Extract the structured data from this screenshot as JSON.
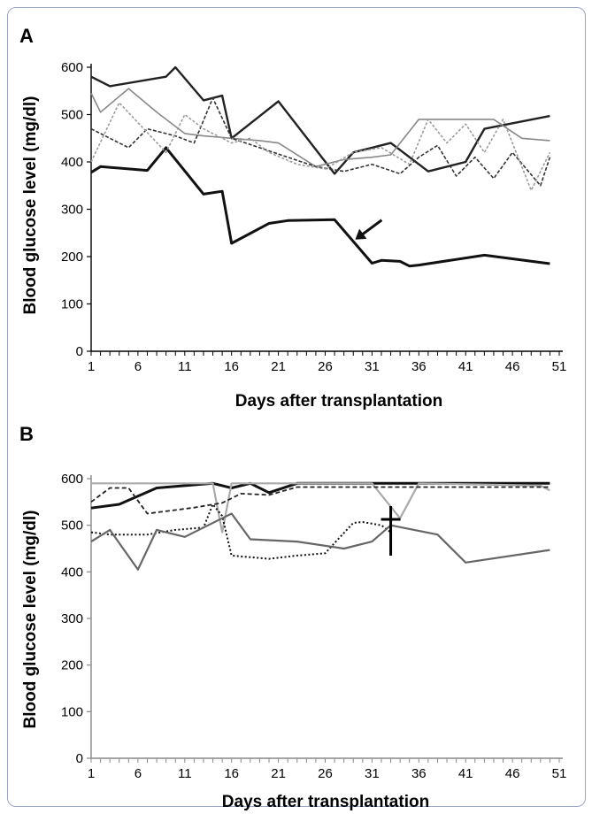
{
  "figure": {
    "panel_a_label": "A",
    "panel_b_label": "B"
  },
  "chart_data": [
    {
      "type": "line",
      "panel": "A",
      "xlabel": "Days after transplantation",
      "ylabel": "Blood glucose level (mg/dl)",
      "xlim": [
        1,
        51
      ],
      "ylim": [
        0,
        600
      ],
      "xticks": [
        1,
        6,
        11,
        16,
        21,
        26,
        31,
        36,
        41,
        46,
        51
      ],
      "yticks": [
        0,
        100,
        200,
        300,
        400,
        500,
        600
      ],
      "annotation": "arrow pointing to the bold line near day 29",
      "series": [
        {
          "style": "bold-black",
          "color": "#111111",
          "x": [
            1,
            2,
            7,
            9,
            13,
            15,
            16,
            20,
            22,
            27,
            31,
            32,
            34,
            35,
            36,
            43,
            50
          ],
          "y": [
            378,
            390,
            382,
            430,
            332,
            338,
            228,
            270,
            276,
            278,
            186,
            192,
            190,
            180,
            182,
            203,
            185
          ]
        },
        {
          "style": "dark-solid",
          "color": "#222222",
          "x": [
            1,
            3,
            9,
            10,
            13,
            15,
            16,
            21,
            27,
            29,
            33,
            37,
            41,
            43,
            50
          ],
          "y": [
            580,
            560,
            580,
            600,
            530,
            540,
            450,
            528,
            375,
            420,
            440,
            380,
            400,
            470,
            497
          ]
        },
        {
          "style": "gray-solid",
          "color": "#888888",
          "x": [
            1,
            2,
            5,
            8,
            11,
            13,
            16,
            19,
            21,
            25,
            28,
            31,
            33,
            36,
            41,
            44,
            47,
            50
          ],
          "y": [
            545,
            505,
            555,
            505,
            460,
            455,
            450,
            445,
            440,
            390,
            405,
            410,
            415,
            490,
            490,
            490,
            450,
            445
          ]
        },
        {
          "style": "dark-hatched",
          "color": "#333333",
          "x": [
            1,
            3,
            5,
            7,
            10,
            12,
            14,
            16,
            19,
            22,
            25,
            28,
            31,
            34,
            36,
            38,
            40,
            42,
            44,
            46,
            49,
            50
          ],
          "y": [
            470,
            450,
            430,
            470,
            455,
            440,
            535,
            450,
            430,
            410,
            390,
            380,
            395,
            375,
            410,
            435,
            370,
            410,
            365,
            420,
            350,
            410
          ]
        },
        {
          "style": "light-hatched",
          "color": "#9a9a9a",
          "x": [
            1,
            4,
            9,
            11,
            13,
            16,
            18,
            20,
            23,
            26,
            29,
            32,
            35,
            37,
            39,
            41,
            43,
            45,
            48,
            50
          ],
          "y": [
            400,
            525,
            420,
            500,
            470,
            440,
            450,
            420,
            395,
            385,
            420,
            430,
            395,
            490,
            440,
            480,
            420,
            490,
            340,
            420
          ]
        }
      ]
    },
    {
      "type": "line",
      "panel": "B",
      "xlabel": "Days after transplantation",
      "ylabel": "Blood glucose level (mg/dl)",
      "xlim": [
        1,
        51
      ],
      "ylim": [
        0,
        600
      ],
      "xticks": [
        1,
        6,
        11,
        16,
        21,
        26,
        31,
        36,
        41,
        46,
        51
      ],
      "yticks": [
        0,
        100,
        200,
        300,
        400,
        500,
        600
      ],
      "annotation": "cross marker at day 33 (death)",
      "series": [
        {
          "style": "bold-black",
          "color": "#111111",
          "x": [
            1,
            4,
            8,
            14,
            16,
            18,
            20,
            23,
            26,
            50
          ],
          "y": [
            537,
            545,
            580,
            590,
            580,
            590,
            570,
            590,
            590,
            590
          ]
        },
        {
          "style": "light-gray",
          "color": "#aaaaaa",
          "x": [
            1,
            4,
            10,
            14,
            15,
            16,
            31,
            34,
            36,
            49,
            50
          ],
          "y": [
            590,
            590,
            590,
            590,
            485,
            590,
            590,
            515,
            590,
            585,
            575
          ]
        },
        {
          "style": "dark-dashed",
          "color": "#222222",
          "x": [
            1,
            3,
            5,
            7,
            12,
            15,
            17,
            20,
            23,
            26,
            50
          ],
          "y": [
            550,
            580,
            580,
            525,
            538,
            548,
            568,
            565,
            582,
            582,
            582
          ]
        },
        {
          "style": "dotted",
          "color": "#111111",
          "x": [
            1,
            3,
            7,
            10,
            13,
            14,
            15,
            16,
            20,
            23,
            26,
            27,
            29,
            30,
            32,
            33
          ],
          "y": [
            485,
            480,
            480,
            490,
            495,
            545,
            520,
            435,
            428,
            435,
            440,
            462,
            505,
            507,
            500,
            485
          ]
        },
        {
          "style": "medium-gray",
          "color": "#666666",
          "x": [
            1,
            3,
            6,
            8,
            11,
            16,
            18,
            23,
            28,
            31,
            33,
            38,
            41,
            50
          ],
          "y": [
            465,
            490,
            405,
            490,
            475,
            525,
            470,
            465,
            450,
            465,
            500,
            480,
            420,
            447
          ]
        }
      ]
    }
  ]
}
